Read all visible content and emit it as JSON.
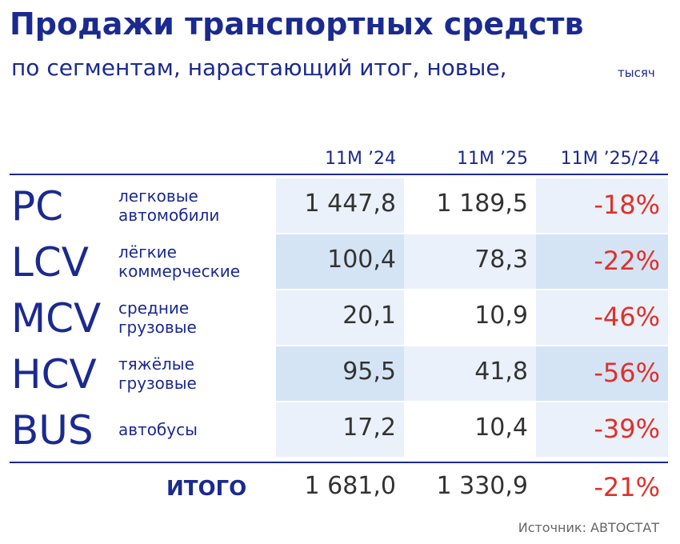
{
  "header": {
    "title": "Продажи транспортных средств",
    "subtitle": "по сегментам, нарастающий итог, новые,",
    "unit": "тысяч"
  },
  "table": {
    "columns": [
      "11M ’24",
      "11M ’25",
      "11M ’25/24"
    ],
    "rows": [
      {
        "code": "PC",
        "label": [
          "легковые",
          "автомобили"
        ],
        "cells": [
          "1 447,8",
          "1 189,5",
          "-18%"
        ]
      },
      {
        "code": "LCV",
        "label": [
          "лёгкие",
          "коммерческие"
        ],
        "cells": [
          "100,4",
          "78,3",
          "-22%"
        ]
      },
      {
        "code": "MCV",
        "label": [
          "средние",
          "грузовые"
        ],
        "cells": [
          "20,1",
          "10,9",
          "-46%"
        ]
      },
      {
        "code": "HCV",
        "label": [
          "тяжёлые",
          "грузовые"
        ],
        "cells": [
          "95,5",
          "41,8",
          "-56%"
        ]
      },
      {
        "code": "BUS",
        "label": [
          "автобусы"
        ],
        "cells": [
          "17,2",
          "10,4",
          "-39%"
        ]
      }
    ],
    "total": {
      "label": "ИТОГО",
      "cells": [
        "1 681,0",
        "1 330,9",
        "-21%"
      ]
    }
  },
  "footer": {
    "source": "Источник: АВТОСТАТ"
  }
}
